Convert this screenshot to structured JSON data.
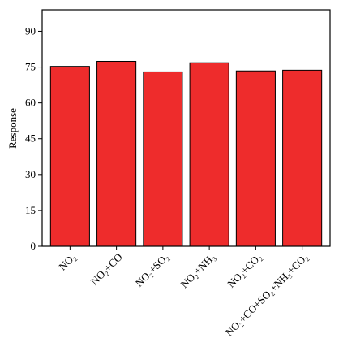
{
  "chart_data": {
    "type": "bar",
    "y_label": "Response",
    "categories": [
      "NO₂",
      "NO₂+CO",
      "NO₂+SO₂",
      "NO₂+NH₃",
      "NO₂+CO₂",
      "NO₂+CO+SO₂+NH₃+CO₂"
    ],
    "values": [
      75.3,
      77.4,
      73.0,
      76.8,
      73.4,
      73.7
    ],
    "color": "#ee2c2c",
    "ylim": [
      0,
      99
    ],
    "yticks": [
      0,
      15,
      30,
      45,
      60,
      75,
      90
    ]
  }
}
